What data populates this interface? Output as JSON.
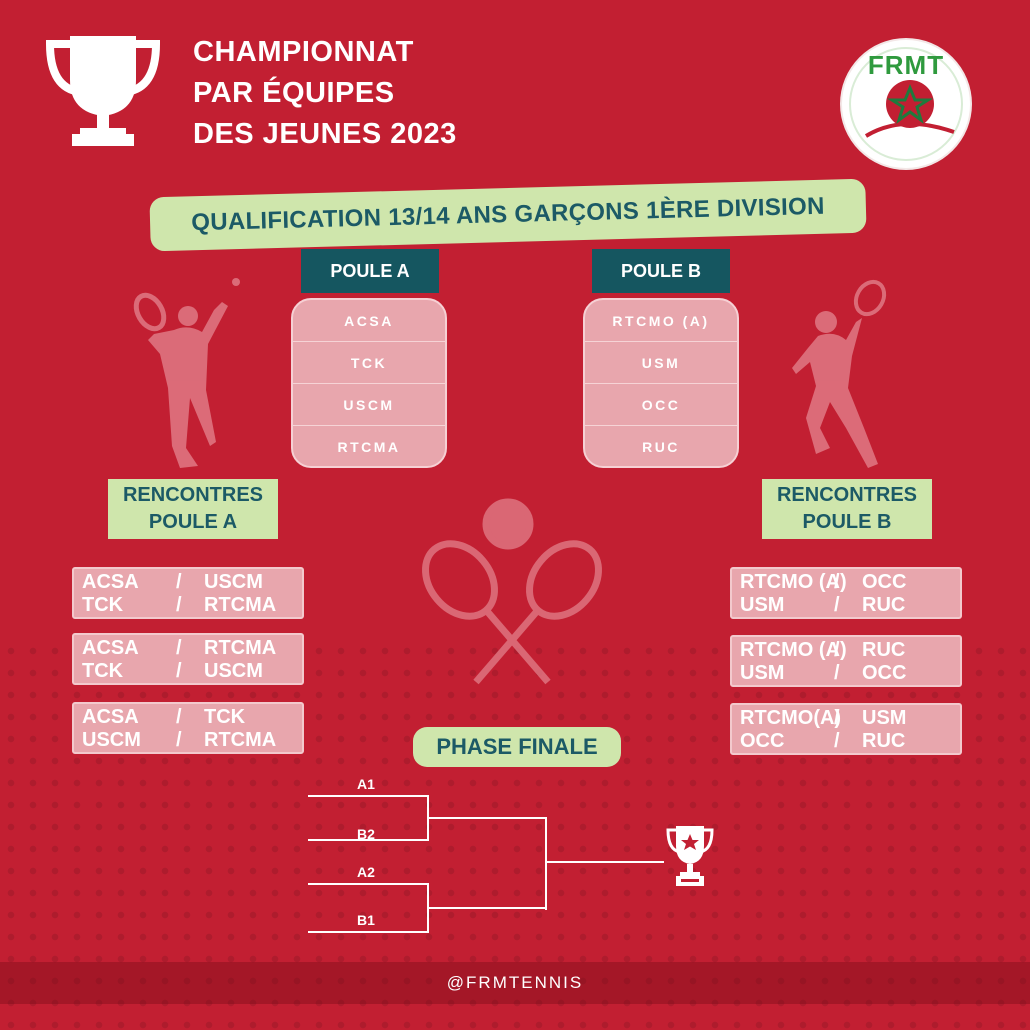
{
  "header": {
    "title_lines": [
      "CHAMPIONNAT",
      "PAR ÉQUIPES",
      "DES JEUNES 2023"
    ],
    "logo_text": "FRMT"
  },
  "banner": "QUALIFICATION 13/14 ANS GARÇONS 1ÈRE DIVISION",
  "poule_a": {
    "title": "POULE A",
    "teams": [
      "ACSA",
      "TCK",
      "USCM",
      "RTCMA"
    ]
  },
  "poule_b": {
    "title": "POULE B",
    "teams": [
      "RTCMO (A)",
      "USM",
      "OCC",
      "RUC"
    ]
  },
  "rencontres_a": {
    "title_lines": [
      "RENCONTRES",
      "POULE A"
    ],
    "matches": [
      [
        [
          "ACSA",
          "/",
          "USCM"
        ],
        [
          "TCK",
          "/",
          "RTCMA"
        ]
      ],
      [
        [
          "ACSA",
          "/",
          "RTCMA"
        ],
        [
          "TCK",
          "/",
          "USCM"
        ]
      ],
      [
        [
          "ACSA",
          "/",
          "TCK"
        ],
        [
          "USCM",
          "/",
          "RTCMA"
        ]
      ]
    ]
  },
  "rencontres_b": {
    "title_lines": [
      "RENCONTRES",
      "POULE B"
    ],
    "matches": [
      [
        [
          "RTCMO (A)",
          "/",
          "OCC"
        ],
        [
          "USM",
          "/",
          "RUC"
        ]
      ],
      [
        [
          "RTCMO (A)",
          "/",
          "RUC"
        ],
        [
          "USM",
          "/",
          "OCC"
        ]
      ],
      [
        [
          "RTCMO(A)",
          "/",
          "USM"
        ],
        [
          "OCC",
          "/",
          "RUC"
        ]
      ]
    ]
  },
  "phase_finale": {
    "title": "PHASE FINALE",
    "slots": [
      "A1",
      "B2",
      "A2",
      "B1"
    ]
  },
  "footer": "@FRMTENNIS",
  "colors": {
    "background": "#c21f32",
    "accent_green": "#cfe6ac",
    "teal": "#155660",
    "pink": "#e8a6ad"
  }
}
